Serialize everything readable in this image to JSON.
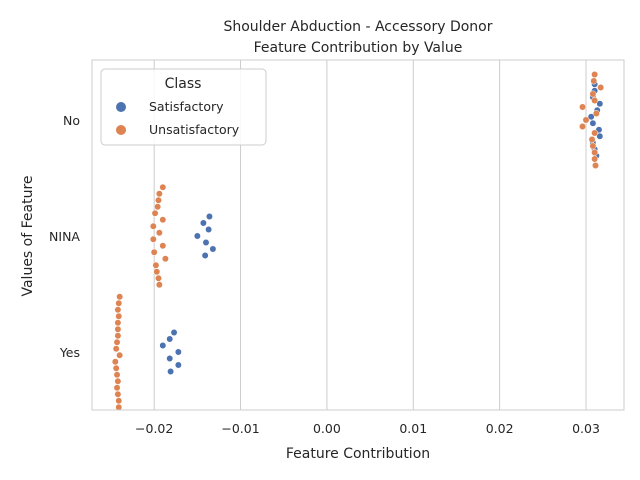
{
  "chart_data": {
    "type": "scatter",
    "style": "swarm",
    "title": [
      "Shoulder Abduction - Accessory Donor",
      "Feature Contribution by Value"
    ],
    "xlabel": "Feature Contribution",
    "ylabel": "Values of Feature",
    "xlim": [
      -0.0272,
      0.0344
    ],
    "xticks": [
      -0.02,
      -0.01,
      0.0,
      0.01,
      0.02,
      0.03
    ],
    "xtick_labels": [
      "−0.02",
      "−0.01",
      "0.00",
      "0.01",
      "0.02",
      "0.03"
    ],
    "categories": [
      "No",
      "NINA",
      "Yes"
    ],
    "grid": "vertical",
    "legend": {
      "title": "Class",
      "placement": "top-left"
    },
    "series": [
      {
        "name": "Satisfactory",
        "color": "#4c72b0",
        "points": [
          {
            "category": "No",
            "values": [
              0.031,
              0.031,
              0.0308,
              0.0316,
              0.0313,
              0.0306,
              0.0308,
              0.0315,
              0.0316,
              0.0308,
              0.031,
              0.0312
            ]
          },
          {
            "category": "NINA",
            "values": [
              -0.0136,
              -0.0143,
              -0.0137,
              -0.015,
              -0.014,
              -0.0132,
              -0.0141
            ]
          },
          {
            "category": "Yes",
            "values": [
              -0.0177,
              -0.0182,
              -0.019,
              -0.0172,
              -0.0182,
              -0.0172,
              -0.0181
            ]
          }
        ]
      },
      {
        "name": "Unsatisfactory",
        "color": "#dd8452",
        "points": [
          {
            "category": "No",
            "values": [
              0.031,
              0.0309,
              0.0317,
              0.0308,
              0.031,
              0.0296,
              0.0312,
              0.03,
              0.0296,
              0.031,
              0.0307,
              0.0308,
              0.031,
              0.031,
              0.0311
            ]
          },
          {
            "category": "NINA",
            "values": [
              -0.019,
              -0.0194,
              -0.0195,
              -0.0196,
              -0.0199,
              -0.019,
              -0.0201,
              -0.0194,
              -0.0201,
              -0.019,
              -0.02,
              -0.0187,
              -0.0198,
              -0.0197,
              -0.0195,
              -0.0194
            ]
          },
          {
            "category": "Yes",
            "values": [
              -0.024,
              -0.0241,
              -0.0242,
              -0.0241,
              -0.0242,
              -0.0242,
              -0.0242,
              -0.0243,
              -0.0244,
              -0.024,
              -0.0245,
              -0.0244,
              -0.0243,
              -0.0242,
              -0.0243,
              -0.0242,
              -0.0241,
              -0.0241
            ]
          }
        ]
      }
    ]
  }
}
